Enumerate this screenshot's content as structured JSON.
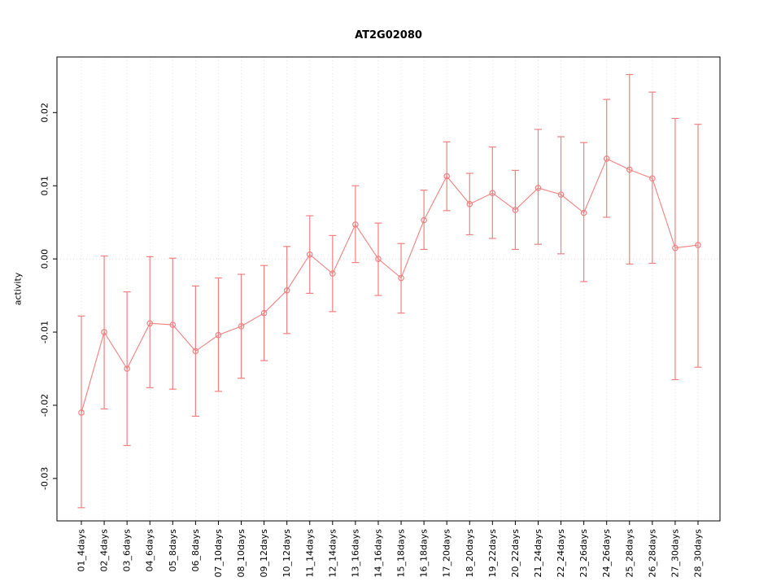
{
  "chart_data": {
    "type": "line",
    "title": "AT2G02080",
    "xlabel": "",
    "ylabel": "activity",
    "legend": "none",
    "grid": "dotted vertical gridline at each category; dotted horizontal line at y=0",
    "marker": "open-circle",
    "error_bars": true,
    "series_color": "#f08080",
    "grid_color": "#e4e4e4",
    "zero_line_color": "#d9d9d9",
    "box_color": "#000000",
    "ylim": [
      -0.0358,
      0.0276
    ],
    "yticks": [
      -0.03,
      -0.02,
      -0.01,
      0.0,
      0.01,
      0.02
    ],
    "ytick_labels": [
      "-0.03",
      "-0.02",
      "-0.01",
      "0.00",
      "0.01",
      "0.02"
    ],
    "categories": [
      "01_4days",
      "02_4days",
      "03_6days",
      "04_6days",
      "05_8days",
      "06_8days",
      "07_10days",
      "08_10days",
      "09_12days",
      "10_12days",
      "11_14days",
      "12_14days",
      "13_16days",
      "14_16days",
      "15_18days",
      "16_18days",
      "17_20days",
      "18_20days",
      "19_22days",
      "20_22days",
      "21_24days",
      "22_24days",
      "23_26days",
      "24_26days",
      "25_28days",
      "26_28days",
      "27_30days",
      "28_30days"
    ],
    "series": [
      {
        "name": "activity",
        "values": [
          -0.021,
          -0.01,
          -0.015,
          -0.0088,
          -0.009,
          -0.0126,
          -0.0104,
          -0.0092,
          -0.0074,
          -0.0043,
          0.0006,
          -0.002,
          0.0047,
          0.0,
          -0.0026,
          0.0053,
          0.0113,
          0.0075,
          0.009,
          0.0067,
          0.0097,
          0.0088,
          0.0063,
          0.0137,
          0.0122,
          0.011,
          0.0015,
          0.0019
        ],
        "lower": [
          -0.034,
          -0.0205,
          -0.0255,
          -0.0176,
          -0.0178,
          -0.0215,
          -0.0181,
          -0.0163,
          -0.0139,
          -0.0102,
          -0.0047,
          -0.0072,
          -0.0005,
          -0.005,
          -0.0074,
          0.0013,
          0.0066,
          0.0033,
          0.0028,
          0.0013,
          0.002,
          0.0007,
          -0.0031,
          0.0057,
          -0.0007,
          -0.0006,
          -0.0165,
          -0.0148
        ],
        "upper": [
          -0.0078,
          0.0004,
          -0.0045,
          0.0003,
          0.0001,
          -0.0037,
          -0.0026,
          -0.0021,
          -0.0009,
          0.0017,
          0.0059,
          0.0032,
          0.01,
          0.0049,
          0.0021,
          0.0094,
          0.016,
          0.0117,
          0.0153,
          0.0121,
          0.0177,
          0.0167,
          0.0159,
          0.0218,
          0.0252,
          0.0228,
          0.0192,
          0.0184
        ]
      }
    ]
  }
}
